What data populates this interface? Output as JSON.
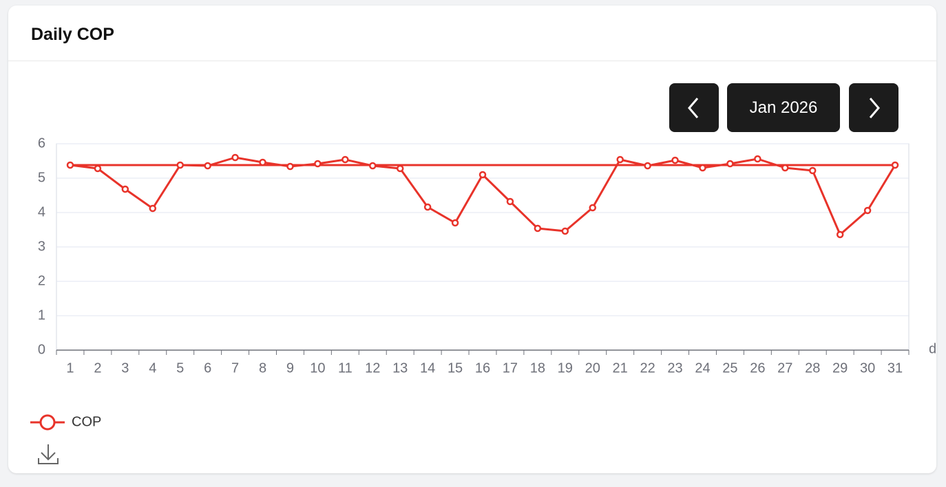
{
  "month_label": "Jan 2026",
  "chart_data": {
    "type": "line",
    "title": "Daily COP",
    "x_label": "d",
    "categories": [
      "1",
      "2",
      "3",
      "4",
      "5",
      "6",
      "7",
      "8",
      "9",
      "10",
      "11",
      "12",
      "13",
      "14",
      "15",
      "16",
      "17",
      "18",
      "19",
      "20",
      "21",
      "22",
      "23",
      "24",
      "25",
      "26",
      "27",
      "28",
      "29",
      "30",
      "31"
    ],
    "series": [
      {
        "name": "COP",
        "color": "#e8332a",
        "values": [
          5.38,
          5.28,
          4.68,
          4.12,
          5.38,
          5.36,
          5.6,
          5.46,
          5.34,
          5.42,
          5.54,
          5.36,
          5.28,
          4.16,
          3.7,
          5.1,
          4.32,
          3.54,
          3.46,
          4.14,
          5.54,
          5.36,
          5.52,
          5.3,
          5.42,
          5.56,
          5.3,
          5.22,
          3.36,
          4.06,
          5.38
        ]
      }
    ],
    "mark_line": 5.38,
    "ylim": [
      0,
      6
    ],
    "yticks": [
      0,
      1,
      2,
      3,
      4,
      5,
      6
    ],
    "grid": true
  }
}
